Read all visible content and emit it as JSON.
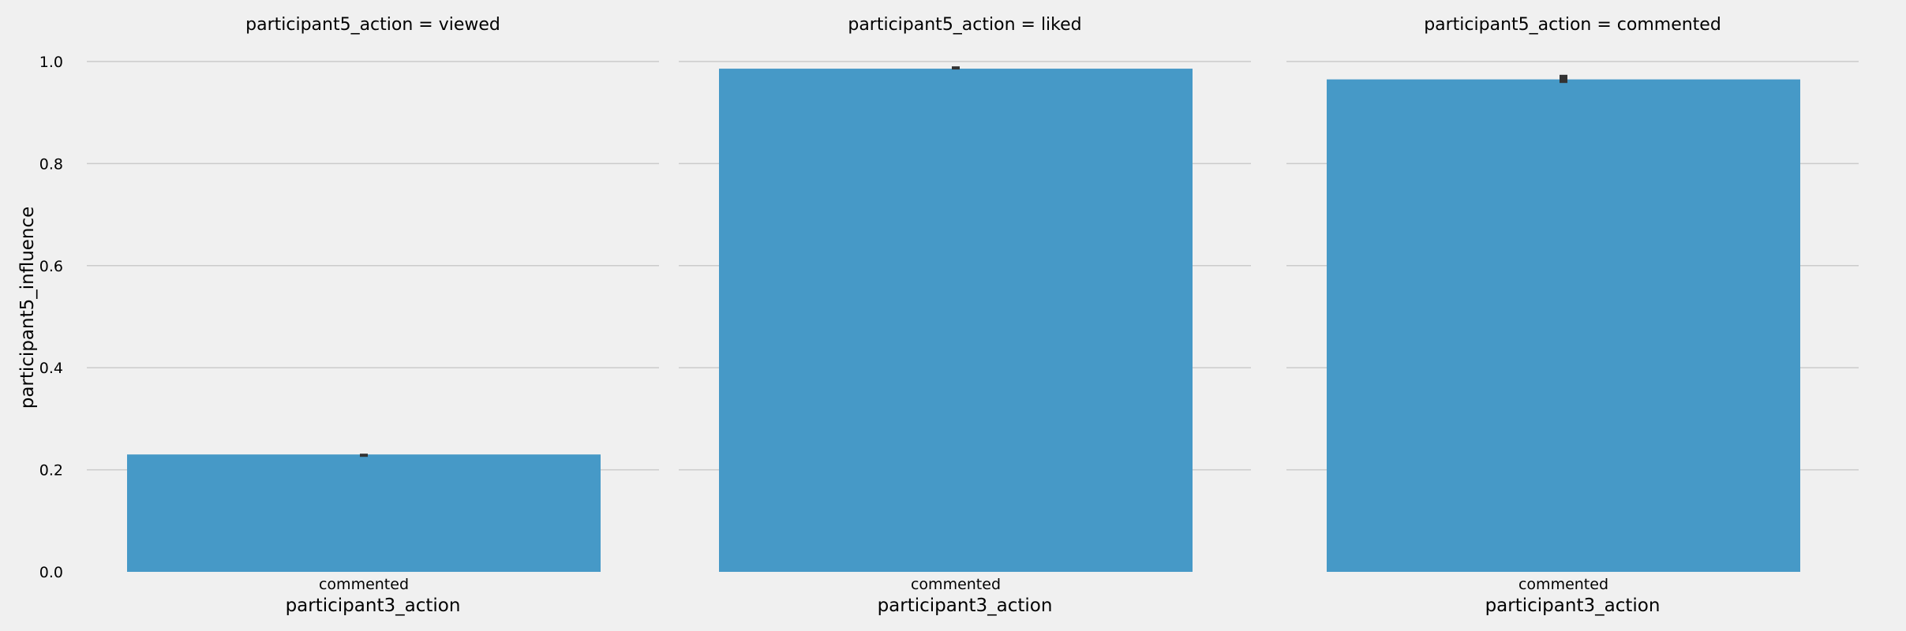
{
  "chart_data": {
    "type": "bar",
    "facet_variable": "participant5_action",
    "ylabel": "participant5_influence",
    "ylim": [
      0,
      1.0
    ],
    "yticks": [
      "0.0",
      "0.2",
      "0.4",
      "0.6",
      "0.8",
      "1.0"
    ],
    "grid": "horizontal",
    "colors": {
      "background": "#f0f0f0",
      "bar": "#4699c7",
      "grid": "#cbcbcb",
      "errorbar": "#333333"
    },
    "panels": [
      {
        "title": "participant5_action = viewed",
        "xlabel": "participant3_action",
        "categories": [
          "commented"
        ],
        "values": [
          0.23
        ],
        "error": [
          [
            0.23,
            0.23
          ]
        ]
      },
      {
        "title": "participant5_action = liked",
        "xlabel": "participant3_action",
        "categories": [
          "commented"
        ],
        "values": [
          0.986
        ],
        "error": [
          [
            0.983,
            0.989
          ]
        ]
      },
      {
        "title": "participant5_action = commented",
        "xlabel": "participant3_action",
        "categories": [
          "commented"
        ],
        "values": [
          0.965
        ],
        "error": [
          [
            0.958,
            0.974
          ]
        ]
      }
    ]
  }
}
